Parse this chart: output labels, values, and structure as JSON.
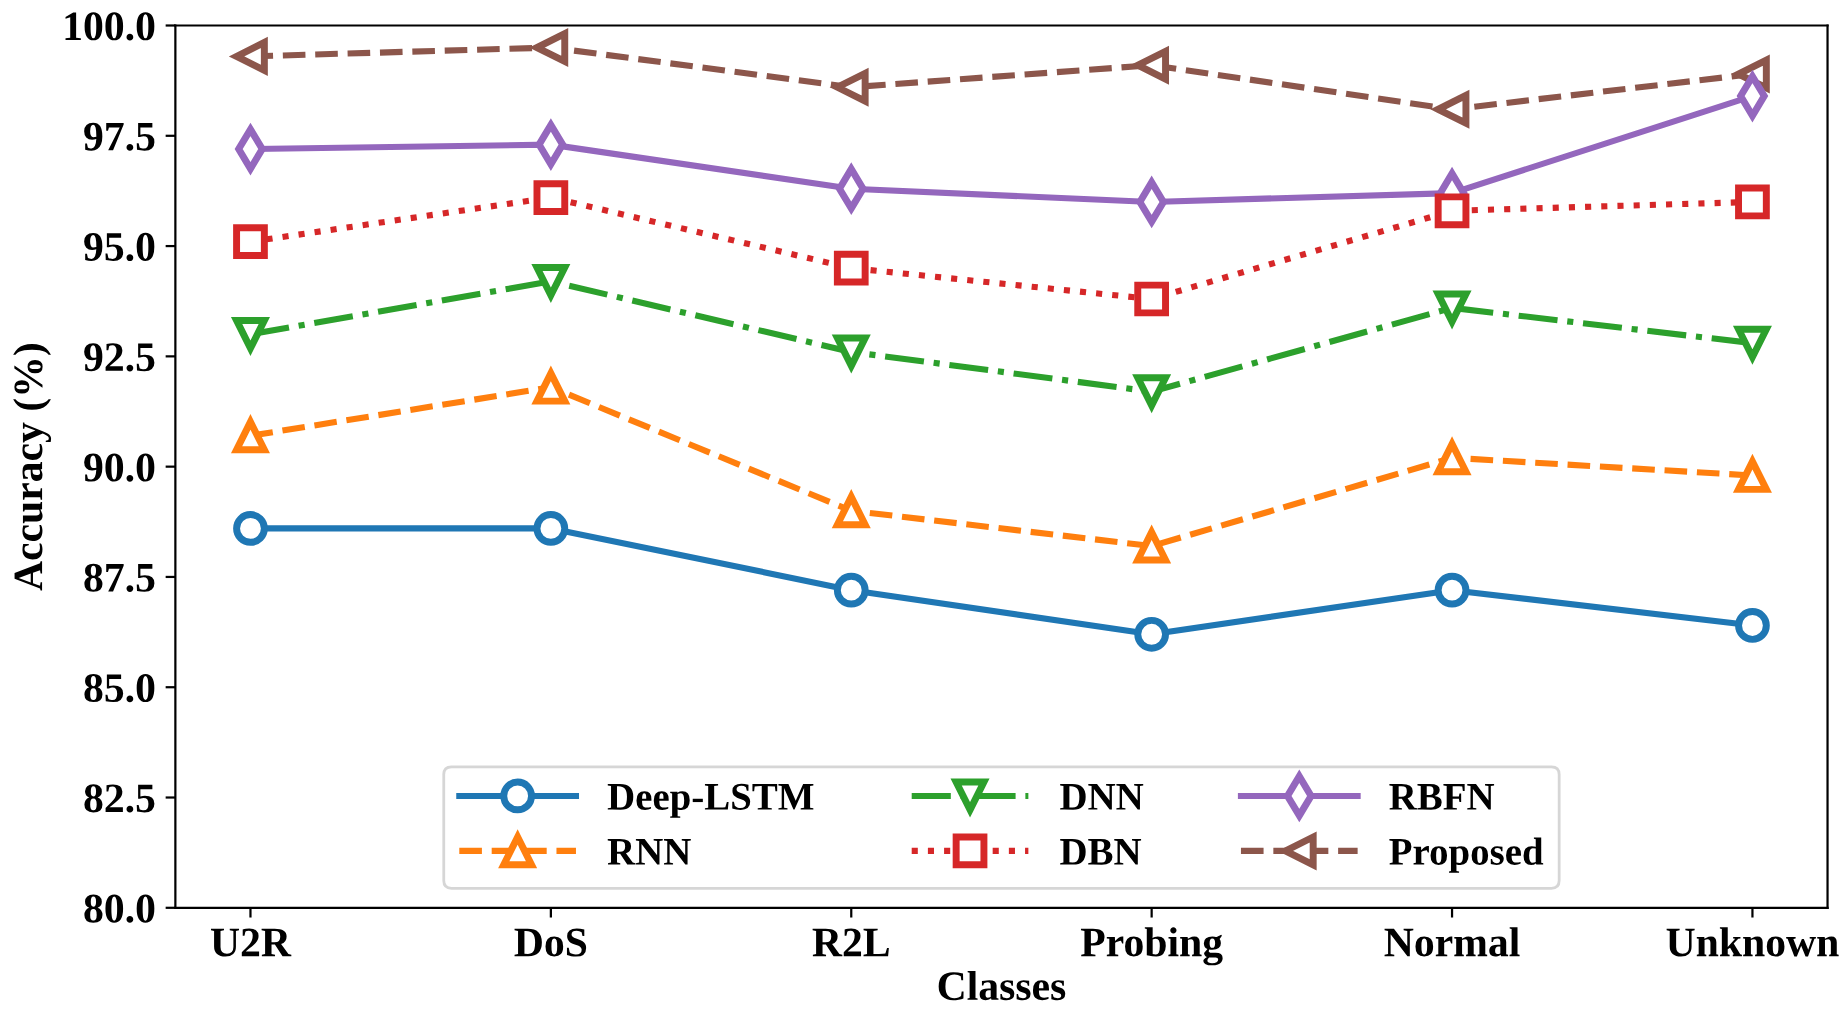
{
  "chart_data": {
    "type": "line",
    "xlabel": "Classes",
    "ylabel": "Accuracy (%)",
    "categories": [
      "U2R",
      "DoS",
      "R2L",
      "Probing",
      "Normal",
      "Unknown"
    ],
    "series": [
      {
        "name": "Deep-LSTM",
        "color": "#1f77b4",
        "marker": "circle",
        "line_style": "solid",
        "values": [
          88.6,
          88.6,
          87.2,
          86.2,
          87.2,
          86.4
        ]
      },
      {
        "name": "RNN",
        "color": "#ff7f0e",
        "marker": "triangle",
        "line_style": "dashed",
        "values": [
          90.7,
          91.8,
          89.0,
          88.2,
          90.2,
          89.8
        ]
      },
      {
        "name": "DNN",
        "color": "#2ca02c",
        "marker": "triangle_down",
        "line_style": "dashdot",
        "values": [
          93.0,
          94.2,
          92.6,
          91.7,
          93.6,
          92.8
        ]
      },
      {
        "name": "DBN",
        "color": "#d62728",
        "marker": "square",
        "line_style": "dotted",
        "values": [
          95.1,
          96.1,
          94.5,
          93.8,
          95.8,
          96.0
        ]
      },
      {
        "name": "RBFN",
        "color": "#9467bd",
        "marker": "diamond",
        "line_style": "solid",
        "values": [
          97.2,
          97.3,
          96.3,
          96.0,
          96.2,
          98.4
        ]
      },
      {
        "name": "Proposed",
        "color": "#8c564b",
        "marker": "triangle_left",
        "line_style": "dashed",
        "values": [
          99.3,
          99.5,
          98.6,
          99.1,
          98.1,
          98.9
        ]
      }
    ],
    "ylim": [
      80.0,
      100.0
    ],
    "yticks": [
      {
        "value": 80,
        "label": "80.0"
      },
      82.5,
      {
        "value": 85,
        "label": "85.0"
      },
      87.5,
      {
        "value": 90,
        "label": "90.0"
      },
      92.5,
      {
        "value": 95,
        "label": "95.0"
      },
      97.5,
      {
        "value": 100,
        "label": "100.0"
      }
    ],
    "grid": false,
    "legend": "bottom"
  }
}
